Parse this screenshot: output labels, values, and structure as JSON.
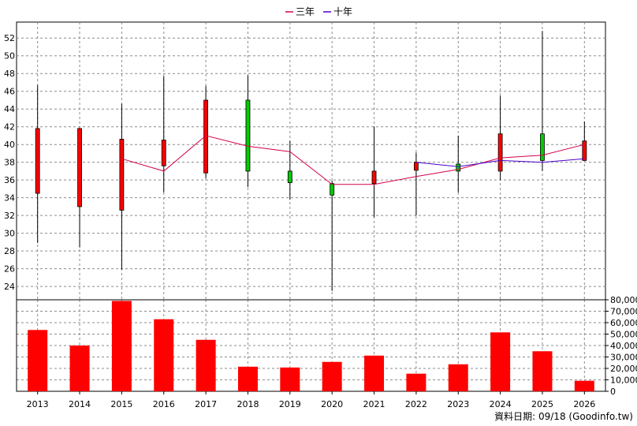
{
  "chart_data": [
    {
      "type": "candlestick",
      "categories": [
        "2013",
        "2014",
        "2015",
        "2016",
        "2017",
        "2018",
        "2019",
        "2020",
        "2021",
        "2022",
        "2023",
        "2024",
        "2025",
        "2026"
      ],
      "ohlc": [
        {
          "open": 34.5,
          "high": 46.7,
          "low": 28.9,
          "close": 41.8
        },
        {
          "open": 33.0,
          "high": 41.9,
          "low": 28.4,
          "close": 41.8
        },
        {
          "open": 32.6,
          "high": 44.6,
          "low": 25.9,
          "close": 40.6
        },
        {
          "open": 37.6,
          "high": 47.7,
          "low": 34.6,
          "close": 40.5
        },
        {
          "open": 36.8,
          "high": 46.6,
          "low": 36.2,
          "close": 45.0
        },
        {
          "open": 45.0,
          "high": 47.8,
          "low": 35.2,
          "close": 37.0
        },
        {
          "open": 37.0,
          "high": 40.4,
          "low": 33.8,
          "close": 35.7
        },
        {
          "open": 35.6,
          "high": 35.9,
          "low": 23.5,
          "close": 34.3
        },
        {
          "open": 35.6,
          "high": 42.0,
          "low": 31.8,
          "close": 37.0
        },
        {
          "open": 37.1,
          "high": 39.1,
          "low": 32.0,
          "close": 38.0
        },
        {
          "open": 37.8,
          "high": 41.0,
          "low": 34.6,
          "close": 37.0
        },
        {
          "open": 37.0,
          "high": 45.5,
          "low": 36.0,
          "close": 41.2
        },
        {
          "open": 41.2,
          "high": 52.8,
          "low": 37.0,
          "close": 38.2
        },
        {
          "open": 38.2,
          "high": 42.6,
          "low": 38.2,
          "close": 40.4
        }
      ],
      "series": [
        {
          "name": "三年",
          "color": "#d4004f",
          "values": [
            null,
            null,
            38.4,
            37.0,
            41.0,
            39.8,
            39.2,
            35.5,
            35.5,
            36.4,
            37.2,
            38.5,
            38.8,
            40.0
          ]
        },
        {
          "name": "十年",
          "color": "#4b00c8",
          "values": [
            null,
            null,
            null,
            null,
            null,
            null,
            null,
            null,
            null,
            38.0,
            37.5,
            38.2,
            38.0,
            38.4
          ]
        }
      ],
      "ylim": [
        22.5,
        53.8
      ],
      "yticks": [
        24,
        26,
        28,
        30,
        32,
        34,
        36,
        38,
        40,
        42,
        44,
        46,
        48,
        50,
        52
      ],
      "up_color": "#ff0000",
      "down_color": "#00cc00",
      "grid": true,
      "legend_position": "top-center"
    },
    {
      "type": "bar",
      "categories": [
        "2013",
        "2014",
        "2015",
        "2016",
        "2017",
        "2018",
        "2019",
        "2020",
        "2021",
        "2022",
        "2023",
        "2024",
        "2025",
        "2026"
      ],
      "values": [
        53600,
        40000,
        79000,
        63000,
        45000,
        21500,
        20800,
        25700,
        31200,
        15400,
        23600,
        51500,
        35000,
        9200
      ],
      "color": "#ff0000",
      "ylim": [
        0,
        80000
      ],
      "yticks": [
        "0",
        "10,000",
        "20,000",
        "30,000",
        "40,000",
        "50,000",
        "60,000",
        "70,000",
        "80,000"
      ],
      "grid": true
    }
  ],
  "footer": {
    "source": "資料日期: 09/18 (Goodinfo.tw)"
  }
}
